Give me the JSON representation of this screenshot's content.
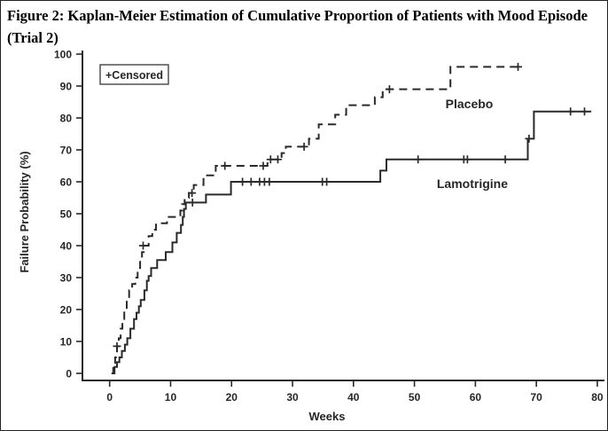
{
  "chart_data": {
    "type": "line",
    "subtype": "kaplan_meier_step",
    "title": "Figure 2: Kaplan-Meier Estimation of Cumulative Proportion of Patients with Mood Episode (Trial 2)",
    "xlabel": "Weeks",
    "ylabel": "Failure Probability (%)",
    "xlim": [
      0,
      80
    ],
    "ylim": [
      0,
      100
    ],
    "xticks": [
      0,
      10,
      20,
      30,
      40,
      50,
      60,
      70,
      80
    ],
    "yticks": [
      0,
      10,
      20,
      30,
      40,
      50,
      60,
      70,
      80,
      90,
      100
    ],
    "grid": false,
    "legend": {
      "text": "+Censored",
      "position": "top-left-inside"
    },
    "line_color": "#2a2a2a",
    "series": [
      {
        "name": "Placebo",
        "line_style": "dashed",
        "label_pos": {
          "x": 59.0,
          "y": 83.0
        },
        "steps": [
          [
            0.3,
            0
          ],
          [
            0.6,
            2
          ],
          [
            0.9,
            5
          ],
          [
            1.2,
            8.5
          ],
          [
            1.5,
            11
          ],
          [
            1.8,
            14
          ],
          [
            2.1,
            17
          ],
          [
            2.4,
            20
          ],
          [
            2.8,
            23
          ],
          [
            3.2,
            26
          ],
          [
            3.7,
            28
          ],
          [
            4.2,
            30
          ],
          [
            4.6,
            33
          ],
          [
            5.0,
            36
          ],
          [
            5.3,
            38
          ],
          [
            5.6,
            40
          ],
          [
            6.4,
            43
          ],
          [
            7.0,
            45
          ],
          [
            7.6,
            47
          ],
          [
            9.4,
            49
          ],
          [
            11.6,
            51
          ],
          [
            11.9,
            53
          ],
          [
            12.3,
            55
          ],
          [
            13.0,
            56.5
          ],
          [
            13.8,
            59
          ],
          [
            15.4,
            62
          ],
          [
            17.4,
            65
          ],
          [
            25.9,
            67
          ],
          [
            28.2,
            69
          ],
          [
            28.9,
            71
          ],
          [
            32.7,
            73.5
          ],
          [
            34.3,
            78
          ],
          [
            37.0,
            81
          ],
          [
            38.8,
            84
          ],
          [
            43.5,
            86.5
          ],
          [
            44.8,
            89
          ],
          [
            55.9,
            96
          ],
          [
            67.5,
            96
          ]
        ],
        "censors": [
          [
            1.2,
            8.5
          ],
          [
            5.5,
            40
          ],
          [
            13.5,
            56.5
          ],
          [
            18.9,
            65
          ],
          [
            25.2,
            65
          ],
          [
            26.4,
            67
          ],
          [
            27.6,
            67
          ],
          [
            31.9,
            71
          ],
          [
            45.9,
            89
          ],
          [
            67.0,
            96
          ]
        ]
      },
      {
        "name": "Lamotrigine",
        "line_style": "solid",
        "label_pos": {
          "x": 59.5,
          "y": 58.0
        },
        "steps": [
          [
            0.5,
            0
          ],
          [
            0.8,
            2
          ],
          [
            1.2,
            3.5
          ],
          [
            1.6,
            5
          ],
          [
            2.0,
            7
          ],
          [
            2.5,
            9
          ],
          [
            2.9,
            11
          ],
          [
            3.4,
            14
          ],
          [
            4.0,
            17
          ],
          [
            4.4,
            19
          ],
          [
            4.8,
            21
          ],
          [
            5.1,
            23
          ],
          [
            5.7,
            26
          ],
          [
            6.1,
            29
          ],
          [
            6.4,
            30.5
          ],
          [
            6.8,
            33
          ],
          [
            7.8,
            35.5
          ],
          [
            9.2,
            38
          ],
          [
            10.3,
            41
          ],
          [
            11.0,
            44
          ],
          [
            11.7,
            46.5
          ],
          [
            12.0,
            49
          ],
          [
            12.2,
            51.5
          ],
          [
            12.5,
            53.5
          ],
          [
            15.8,
            56
          ],
          [
            19.9,
            60
          ],
          [
            44.4,
            63.5
          ],
          [
            45.4,
            67
          ],
          [
            68.6,
            73.5
          ],
          [
            69.6,
            82
          ],
          [
            79.0,
            82
          ]
        ],
        "censors": [
          [
            13.6,
            53.5
          ],
          [
            21.8,
            60
          ],
          [
            23.2,
            60
          ],
          [
            24.6,
            60
          ],
          [
            25.4,
            60
          ],
          [
            26.2,
            60
          ],
          [
            34.9,
            60
          ],
          [
            35.6,
            60
          ],
          [
            50.6,
            67
          ],
          [
            58.1,
            67
          ],
          [
            58.7,
            67
          ],
          [
            64.9,
            67
          ],
          [
            68.8,
            73.5
          ],
          [
            75.6,
            82
          ],
          [
            77.9,
            82
          ]
        ]
      }
    ]
  }
}
